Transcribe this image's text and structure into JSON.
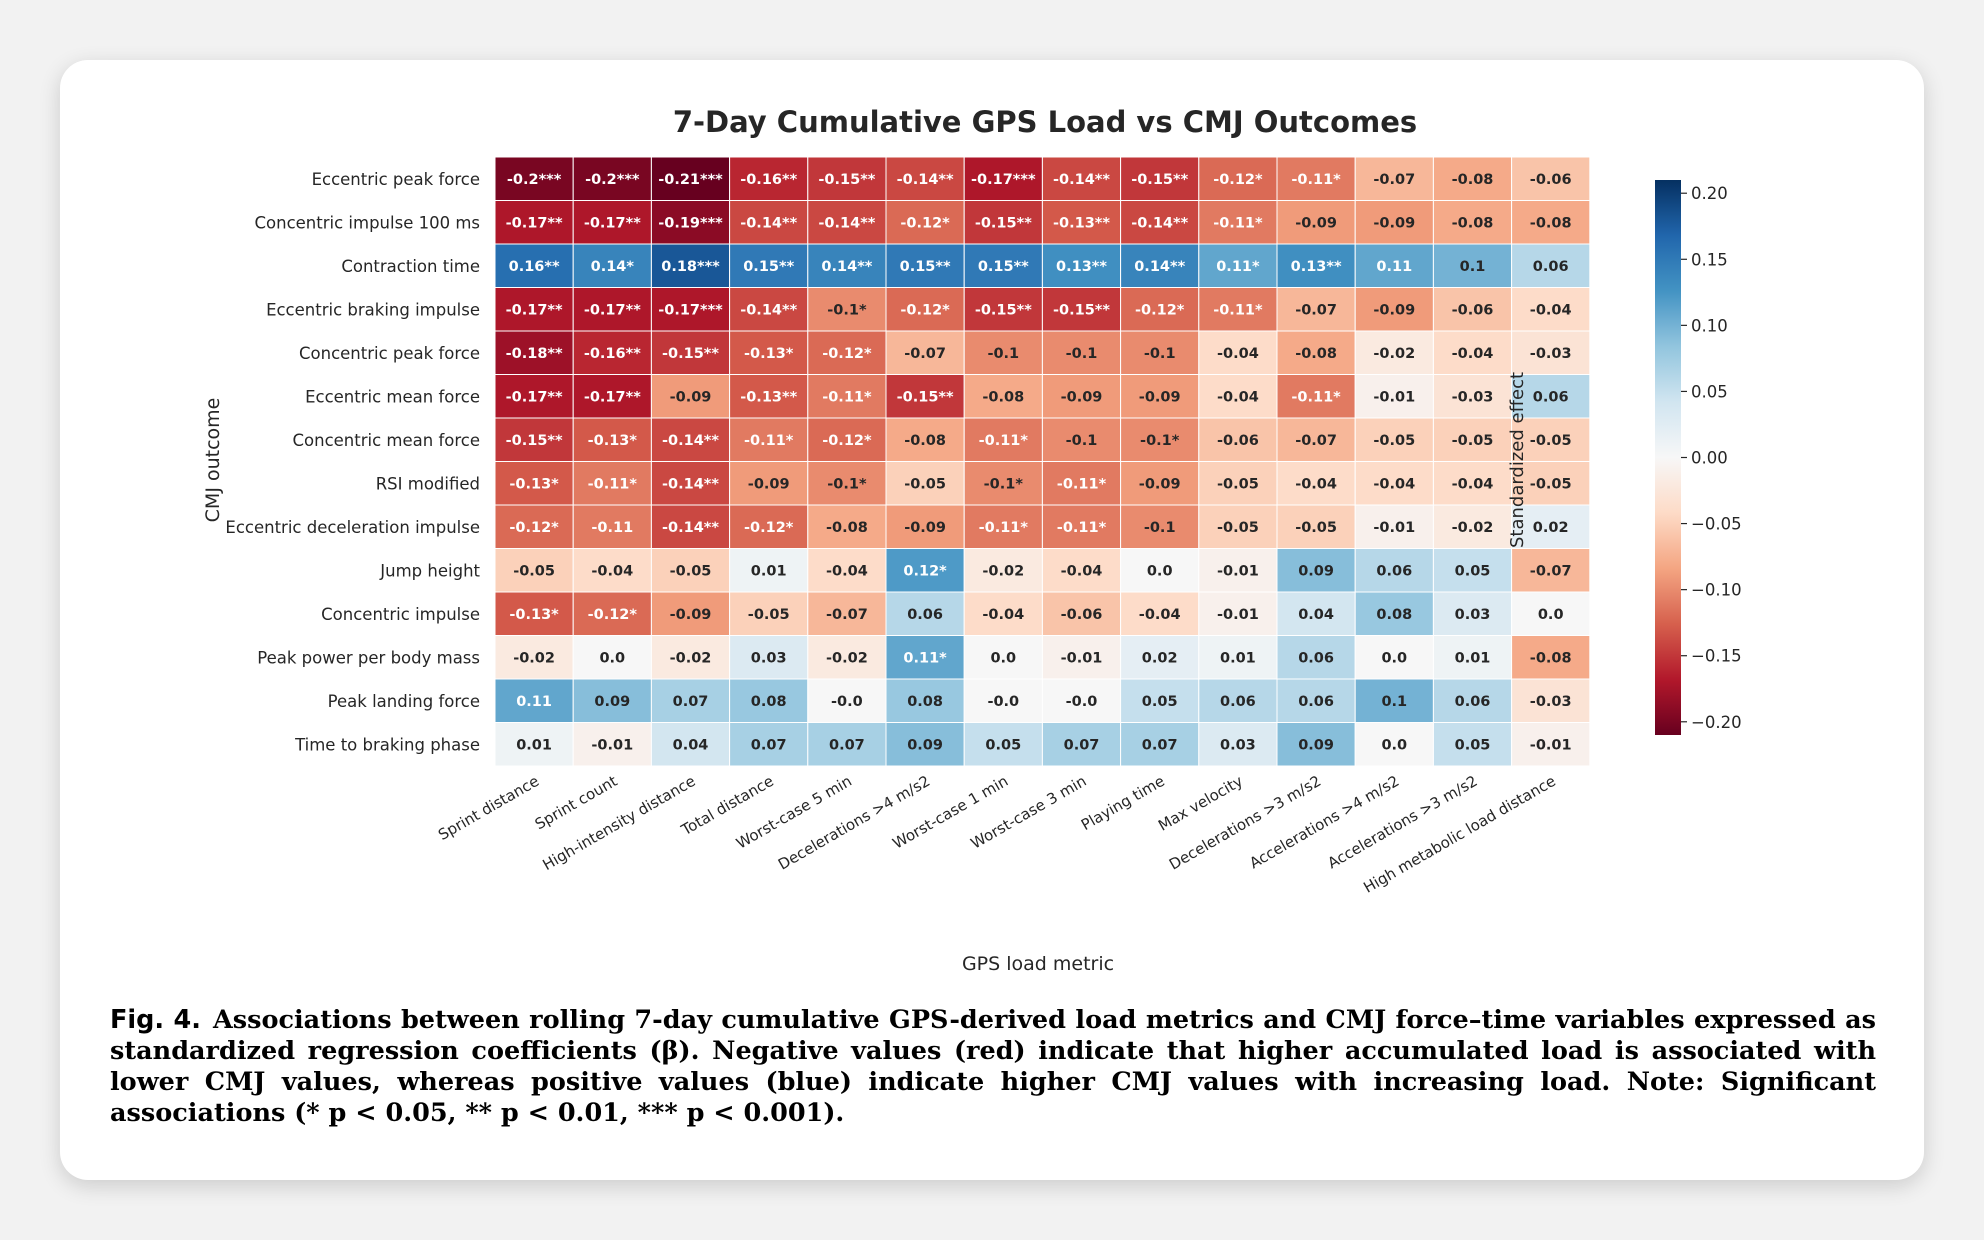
{
  "chart_data": {
    "type": "heatmap",
    "title": "7-Day Cumulative GPS Load vs CMJ Outcomes",
    "xlabel": "GPS load metric",
    "ylabel": "CMJ outcome",
    "rows": [
      "Eccentric peak force",
      "Concentric impulse 100 ms",
      "Contraction time",
      "Eccentric braking impulse",
      "Concentric peak force",
      "Eccentric mean force",
      "Concentric mean force",
      "RSI modified",
      "Eccentric deceleration impulse",
      "Jump height",
      "Concentric impulse",
      "Peak power per body mass",
      "Peak landing force",
      "Time to braking phase"
    ],
    "columns": [
      "Sprint distance",
      "Sprint count",
      "High-intensity distance",
      "Total distance",
      "Worst-case 5 min",
      "Decelerations >4 m/s2",
      "Worst-case 1 min",
      "Worst-case 3 min",
      "Playing time",
      "Max velocity",
      "Decelerations >3 m/s2",
      "Accelerations >4 m/s2",
      "Accelerations >3 m/s2",
      "High metabolic load distance"
    ],
    "values": [
      [
        -0.2,
        -0.2,
        -0.21,
        -0.16,
        -0.15,
        -0.14,
        -0.17,
        -0.14,
        -0.15,
        -0.12,
        -0.11,
        -0.07,
        -0.08,
        -0.06
      ],
      [
        -0.17,
        -0.17,
        -0.19,
        -0.14,
        -0.14,
        -0.12,
        -0.15,
        -0.13,
        -0.14,
        -0.11,
        -0.09,
        -0.09,
        -0.08,
        -0.08
      ],
      [
        0.16,
        0.14,
        0.18,
        0.15,
        0.14,
        0.15,
        0.15,
        0.13,
        0.14,
        0.11,
        0.13,
        0.11,
        0.1,
        0.06
      ],
      [
        -0.17,
        -0.17,
        -0.17,
        -0.14,
        -0.1,
        -0.12,
        -0.15,
        -0.15,
        -0.12,
        -0.11,
        -0.07,
        -0.09,
        -0.06,
        -0.04
      ],
      [
        -0.18,
        -0.16,
        -0.15,
        -0.13,
        -0.12,
        -0.07,
        -0.1,
        -0.1,
        -0.1,
        -0.04,
        -0.08,
        -0.02,
        -0.04,
        -0.03
      ],
      [
        -0.17,
        -0.17,
        -0.09,
        -0.13,
        -0.11,
        -0.15,
        -0.08,
        -0.09,
        -0.09,
        -0.04,
        -0.11,
        -0.01,
        -0.03,
        0.06
      ],
      [
        -0.15,
        -0.13,
        -0.14,
        -0.11,
        -0.12,
        -0.08,
        -0.11,
        -0.1,
        -0.1,
        -0.06,
        -0.07,
        -0.05,
        -0.05,
        -0.05
      ],
      [
        -0.13,
        -0.11,
        -0.14,
        -0.09,
        -0.1,
        -0.05,
        -0.1,
        -0.11,
        -0.09,
        -0.05,
        -0.04,
        -0.04,
        -0.04,
        -0.05
      ],
      [
        -0.12,
        -0.11,
        -0.14,
        -0.12,
        -0.08,
        -0.09,
        -0.11,
        -0.11,
        -0.1,
        -0.05,
        -0.05,
        -0.01,
        -0.02,
        0.02
      ],
      [
        -0.05,
        -0.04,
        -0.05,
        0.01,
        -0.04,
        0.12,
        -0.02,
        -0.04,
        0.0,
        -0.01,
        0.09,
        0.06,
        0.05,
        -0.07
      ],
      [
        -0.13,
        -0.12,
        -0.09,
        -0.05,
        -0.07,
        0.06,
        -0.04,
        -0.06,
        -0.04,
        -0.01,
        0.04,
        0.08,
        0.03,
        0.0
      ],
      [
        -0.02,
        0.0,
        -0.02,
        0.03,
        -0.02,
        0.11,
        0.0,
        -0.01,
        0.02,
        0.01,
        0.06,
        0.0,
        0.01,
        -0.08
      ],
      [
        0.11,
        0.09,
        0.07,
        0.08,
        -0.0,
        0.08,
        -0.0,
        -0.0,
        0.05,
        0.06,
        0.06,
        0.1,
        0.06,
        -0.03
      ],
      [
        0.01,
        -0.01,
        0.04,
        0.07,
        0.07,
        0.09,
        0.05,
        0.07,
        0.07,
        0.03,
        0.09,
        0.0,
        0.05,
        -0.01
      ]
    ],
    "labels": [
      [
        "-0.2***",
        "-0.2***",
        "-0.21***",
        "-0.16**",
        "-0.15**",
        "-0.14**",
        "-0.17***",
        "-0.14**",
        "-0.15**",
        "-0.12*",
        "-0.11*",
        "-0.07",
        "-0.08",
        "-0.06"
      ],
      [
        "-0.17**",
        "-0.17**",
        "-0.19***",
        "-0.14**",
        "-0.14**",
        "-0.12*",
        "-0.15**",
        "-0.13**",
        "-0.14**",
        "-0.11*",
        "-0.09",
        "-0.09",
        "-0.08",
        "-0.08"
      ],
      [
        "0.16**",
        "0.14*",
        "0.18***",
        "0.15**",
        "0.14**",
        "0.15**",
        "0.15**",
        "0.13**",
        "0.14**",
        "0.11*",
        "0.13**",
        "0.11",
        "0.1",
        "0.06"
      ],
      [
        "-0.17**",
        "-0.17**",
        "-0.17***",
        "-0.14**",
        "-0.1*",
        "-0.12*",
        "-0.15**",
        "-0.15**",
        "-0.12*",
        "-0.11*",
        "-0.07",
        "-0.09",
        "-0.06",
        "-0.04"
      ],
      [
        "-0.18**",
        "-0.16**",
        "-0.15**",
        "-0.13*",
        "-0.12*",
        "-0.07",
        "-0.1",
        "-0.1",
        "-0.1",
        "-0.04",
        "-0.08",
        "-0.02",
        "-0.04",
        "-0.03"
      ],
      [
        "-0.17**",
        "-0.17**",
        "-0.09",
        "-0.13**",
        "-0.11*",
        "-0.15**",
        "-0.08",
        "-0.09",
        "-0.09",
        "-0.04",
        "-0.11*",
        "-0.01",
        "-0.03",
        "0.06"
      ],
      [
        "-0.15**",
        "-0.13*",
        "-0.14**",
        "-0.11*",
        "-0.12*",
        "-0.08",
        "-0.11*",
        "-0.1",
        "-0.1*",
        "-0.06",
        "-0.07",
        "-0.05",
        "-0.05",
        "-0.05"
      ],
      [
        "-0.13*",
        "-0.11*",
        "-0.14**",
        "-0.09",
        "-0.1*",
        "-0.05",
        "-0.1*",
        "-0.11*",
        "-0.09",
        "-0.05",
        "-0.04",
        "-0.04",
        "-0.04",
        "-0.05"
      ],
      [
        "-0.12*",
        "-0.11",
        "-0.14**",
        "-0.12*",
        "-0.08",
        "-0.09",
        "-0.11*",
        "-0.11*",
        "-0.1",
        "-0.05",
        "-0.05",
        "-0.01",
        "-0.02",
        "0.02"
      ],
      [
        "-0.05",
        "-0.04",
        "-0.05",
        "0.01",
        "-0.04",
        "0.12*",
        "-0.02",
        "-0.04",
        "0.0",
        "-0.01",
        "0.09",
        "0.06",
        "0.05",
        "-0.07"
      ],
      [
        "-0.13*",
        "-0.12*",
        "-0.09",
        "-0.05",
        "-0.07",
        "0.06",
        "-0.04",
        "-0.06",
        "-0.04",
        "-0.01",
        "0.04",
        "0.08",
        "0.03",
        "0.0"
      ],
      [
        "-0.02",
        "0.0",
        "-0.02",
        "0.03",
        "-0.02",
        "0.11*",
        "0.0",
        "-0.01",
        "0.02",
        "0.01",
        "0.06",
        "0.0",
        "0.01",
        "-0.08"
      ],
      [
        "0.11",
        "0.09",
        "0.07",
        "0.08",
        "-0.0",
        "0.08",
        "-0.0",
        "-0.0",
        "0.05",
        "0.06",
        "0.06",
        "0.1",
        "0.06",
        "-0.03"
      ],
      [
        "0.01",
        "-0.01",
        "0.04",
        "0.07",
        "0.07",
        "0.09",
        "0.05",
        "0.07",
        "0.07",
        "0.03",
        "0.09",
        "0.0",
        "0.05",
        "-0.01"
      ]
    ],
    "colorbar": {
      "label": "Standardized effect",
      "vmin": -0.21,
      "vmax": 0.21,
      "ticks": [
        0.2,
        0.15,
        0.1,
        0.05,
        0.0,
        -0.05,
        -0.1,
        -0.15,
        -0.2
      ],
      "tick_labels": [
        "0.20",
        "0.15",
        "0.10",
        "0.05",
        "0.00",
        "−0.05",
        "−0.10",
        "−0.15",
        "−0.20"
      ],
      "colormap": "RdBu"
    }
  },
  "caption": {
    "label": "Fig. 4.",
    "text": "Associations between rolling 7-day cumulative GPS-derived load metrics and CMJ force–time variables expressed as standardized regression coefficients (β). Negative values (red) indicate that higher accumulated load is associated with lower CMJ values, whereas positive values (blue) indicate higher CMJ values with increasing load. Note: Significant associations (* p < 0.05, ** p < 0.01, *** p < 0.001)."
  }
}
